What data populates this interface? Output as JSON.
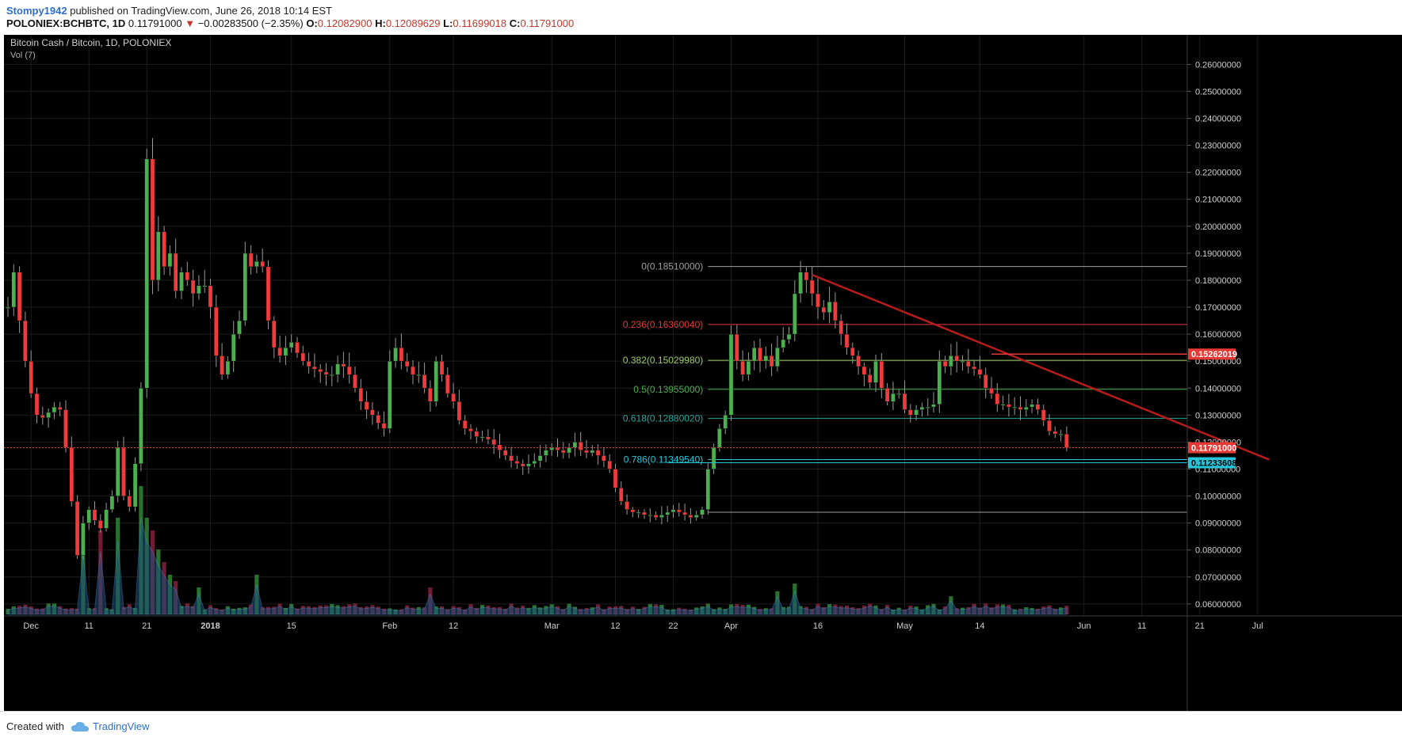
{
  "header": {
    "author": "Stompy1942",
    "published_text": "published on TradingView.com, June 26, 2018 10:14 EST",
    "symbol": "POLONIEX:BCHBTC, 1D",
    "last": "0.11791000",
    "change_arrow": "▼",
    "change": "−0.00283500 (−2.35%)",
    "o_label": "O:",
    "o_value": "0.12082900",
    "h_label": "H:",
    "h_value": "0.12089629",
    "l_label": "L:",
    "l_value": "0.11699018",
    "c_label": "C:",
    "c_value": "0.11791000"
  },
  "chart_header": {
    "title": "Bitcoin Cash / Bitcoin, 1D, POLONIEX",
    "volume_label": "Vol (7)"
  },
  "footer": {
    "created_with": "Created with",
    "brand": "TradingView"
  },
  "colors": {
    "background": "#000000",
    "up": "#4caf50",
    "down": "#ef3b3b",
    "grid": "#1c1c1c",
    "trendline": "#b71c1c",
    "price_line": "#e53935",
    "support": "#26c6da"
  },
  "chart_data": {
    "type": "candlestick",
    "title": "Bitcoin Cash / Bitcoin, 1D, POLONIEX",
    "ylim": [
      0.0582,
      0.2645
    ],
    "y_ticks": [
      "0.26000000",
      "0.25000000",
      "0.24000000",
      "0.23000000",
      "0.22000000",
      "0.21000000",
      "0.20000000",
      "0.19000000",
      "0.18000000",
      "0.17000000",
      "0.16000000",
      "0.15000000",
      "0.14000000",
      "0.13000000",
      "0.12000000",
      "0.11000000",
      "0.10000000",
      "0.09000000",
      "0.08000000",
      "0.07000000",
      "0.06000000"
    ],
    "x_ticks": [
      {
        "label": "Dec",
        "day": 1
      },
      {
        "label": "11",
        "day": 11
      },
      {
        "label": "21",
        "day": 21
      },
      {
        "label": "2018",
        "day": 32
      },
      {
        "label": "15",
        "day": 46
      },
      {
        "label": "Feb",
        "day": 63
      },
      {
        "label": "12",
        "day": 74
      },
      {
        "label": "Mar",
        "day": 91
      },
      {
        "label": "12",
        "day": 102
      },
      {
        "label": "22",
        "day": 112
      },
      {
        "label": "Apr",
        "day": 122
      },
      {
        "label": "16",
        "day": 137
      },
      {
        "label": "May",
        "day": 152
      },
      {
        "label": "14",
        "day": 165
      },
      {
        "label": "Jun",
        "day": 183
      },
      {
        "label": "11",
        "day": 193
      },
      {
        "label": "21",
        "day": 203
      },
      {
        "label": "Jul",
        "day": 213
      }
    ],
    "price_anchors": [
      [
        -3,
        0.17
      ],
      [
        -2,
        0.183
      ],
      [
        -1,
        0.165
      ],
      [
        0,
        0.15
      ],
      [
        1,
        0.138
      ],
      [
        2,
        0.13
      ],
      [
        3,
        0.129
      ],
      [
        4,
        0.131
      ],
      [
        5,
        0.133
      ],
      [
        6,
        0.132
      ],
      [
        7,
        0.118
      ],
      [
        8,
        0.098
      ],
      [
        9,
        0.078
      ],
      [
        10,
        0.09
      ],
      [
        11,
        0.095
      ],
      [
        12,
        0.091
      ],
      [
        13,
        0.088
      ],
      [
        14,
        0.095
      ],
      [
        15,
        0.1
      ],
      [
        16,
        0.118
      ],
      [
        17,
        0.1
      ],
      [
        18,
        0.096
      ],
      [
        19,
        0.112
      ],
      [
        20,
        0.14
      ],
      [
        21,
        0.225
      ],
      [
        22,
        0.18
      ],
      [
        23,
        0.198
      ],
      [
        24,
        0.185
      ],
      [
        25,
        0.19
      ],
      [
        26,
        0.176
      ],
      [
        27,
        0.183
      ],
      [
        28,
        0.18
      ],
      [
        29,
        0.175
      ],
      [
        30,
        0.178
      ],
      [
        31,
        0.178
      ],
      [
        32,
        0.17
      ],
      [
        33,
        0.152
      ],
      [
        34,
        0.145
      ],
      [
        35,
        0.15
      ],
      [
        36,
        0.16
      ],
      [
        37,
        0.165
      ],
      [
        38,
        0.19
      ],
      [
        39,
        0.185
      ],
      [
        40,
        0.187
      ],
      [
        41,
        0.185
      ],
      [
        42,
        0.165
      ],
      [
        43,
        0.155
      ],
      [
        44,
        0.152
      ],
      [
        45,
        0.155
      ],
      [
        46,
        0.157
      ],
      [
        47,
        0.153
      ],
      [
        48,
        0.15
      ],
      [
        49,
        0.148
      ],
      [
        50,
        0.147
      ],
      [
        51,
        0.146
      ],
      [
        52,
        0.145
      ],
      [
        53,
        0.145
      ],
      [
        54,
        0.149
      ],
      [
        55,
        0.148
      ],
      [
        56,
        0.145
      ],
      [
        57,
        0.14
      ],
      [
        58,
        0.135
      ],
      [
        59,
        0.132
      ],
      [
        60,
        0.13
      ],
      [
        61,
        0.127
      ],
      [
        62,
        0.125
      ],
      [
        63,
        0.15
      ],
      [
        64,
        0.155
      ],
      [
        65,
        0.15
      ],
      [
        66,
        0.148
      ],
      [
        67,
        0.145
      ],
      [
        68,
        0.145
      ],
      [
        69,
        0.14
      ],
      [
        70,
        0.135
      ],
      [
        71,
        0.15
      ],
      [
        72,
        0.145
      ],
      [
        73,
        0.138
      ],
      [
        74,
        0.135
      ],
      [
        75,
        0.128
      ],
      [
        76,
        0.125
      ],
      [
        77,
        0.124
      ],
      [
        78,
        0.122
      ],
      [
        79,
        0.122
      ],
      [
        80,
        0.121
      ],
      [
        81,
        0.119
      ],
      [
        82,
        0.117
      ],
      [
        83,
        0.115
      ],
      [
        84,
        0.113
      ],
      [
        85,
        0.112
      ],
      [
        86,
        0.111
      ],
      [
        87,
        0.112
      ],
      [
        88,
        0.113
      ],
      [
        89,
        0.115
      ],
      [
        90,
        0.117
      ],
      [
        91,
        0.118
      ],
      [
        92,
        0.117
      ],
      [
        93,
        0.116
      ],
      [
        94,
        0.118
      ],
      [
        95,
        0.12
      ],
      [
        96,
        0.117
      ],
      [
        97,
        0.116
      ],
      [
        98,
        0.117
      ],
      [
        99,
        0.115
      ],
      [
        100,
        0.113
      ],
      [
        101,
        0.11
      ],
      [
        102,
        0.103
      ],
      [
        103,
        0.098
      ],
      [
        104,
        0.095
      ],
      [
        105,
        0.094
      ],
      [
        106,
        0.094
      ],
      [
        107,
        0.093
      ],
      [
        108,
        0.093
      ],
      [
        109,
        0.092
      ],
      [
        110,
        0.093
      ],
      [
        111,
        0.094
      ],
      [
        112,
        0.095
      ],
      [
        113,
        0.094
      ],
      [
        114,
        0.093
      ],
      [
        115,
        0.092
      ],
      [
        116,
        0.093
      ],
      [
        117,
        0.095
      ],
      [
        118,
        0.11
      ],
      [
        119,
        0.118
      ],
      [
        120,
        0.125
      ],
      [
        121,
        0.13
      ],
      [
        122,
        0.16
      ],
      [
        123,
        0.15
      ],
      [
        124,
        0.145
      ],
      [
        125,
        0.15
      ],
      [
        126,
        0.155
      ],
      [
        127,
        0.15
      ],
      [
        128,
        0.152
      ],
      [
        129,
        0.148
      ],
      [
        130,
        0.155
      ],
      [
        131,
        0.158
      ],
      [
        132,
        0.16
      ],
      [
        133,
        0.175
      ],
      [
        134,
        0.183
      ],
      [
        135,
        0.18
      ],
      [
        136,
        0.175
      ],
      [
        137,
        0.17
      ],
      [
        138,
        0.168
      ],
      [
        139,
        0.172
      ],
      [
        140,
        0.165
      ],
      [
        141,
        0.16
      ],
      [
        142,
        0.155
      ],
      [
        143,
        0.152
      ],
      [
        144,
        0.148
      ],
      [
        145,
        0.145
      ],
      [
        146,
        0.142
      ],
      [
        147,
        0.15
      ],
      [
        148,
        0.14
      ],
      [
        149,
        0.135
      ],
      [
        150,
        0.138
      ],
      [
        151,
        0.138
      ],
      [
        152,
        0.132
      ],
      [
        153,
        0.13
      ],
      [
        154,
        0.132
      ],
      [
        155,
        0.133
      ],
      [
        156,
        0.133
      ],
      [
        157,
        0.134
      ],
      [
        158,
        0.15
      ],
      [
        159,
        0.148
      ],
      [
        160,
        0.152
      ],
      [
        161,
        0.15
      ],
      [
        162,
        0.15
      ],
      [
        163,
        0.148
      ],
      [
        164,
        0.147
      ],
      [
        165,
        0.145
      ],
      [
        166,
        0.14
      ],
      [
        167,
        0.138
      ],
      [
        168,
        0.134
      ],
      [
        169,
        0.134
      ],
      [
        170,
        0.133
      ],
      [
        171,
        0.133
      ],
      [
        172,
        0.132
      ],
      [
        173,
        0.133
      ],
      [
        174,
        0.134
      ],
      [
        175,
        0.132
      ],
      [
        176,
        0.128
      ],
      [
        177,
        0.124
      ],
      [
        178,
        0.123
      ],
      [
        179,
        0.123
      ],
      [
        180,
        0.1179
      ]
    ],
    "price_days": [
      -3,
      180
    ],
    "volume_peaks": [
      [
        10,
        0.55
      ],
      [
        13,
        0.6
      ],
      [
        16,
        0.7
      ],
      [
        20,
        0.95
      ],
      [
        21,
        0.7
      ],
      [
        22,
        0.6
      ],
      [
        23,
        0.45
      ],
      [
        24,
        0.35
      ],
      [
        25,
        0.25
      ],
      [
        26,
        0.2
      ],
      [
        30,
        0.15
      ],
      [
        40,
        0.25
      ],
      [
        70,
        0.15
      ],
      [
        130,
        0.12
      ],
      [
        133,
        0.18
      ],
      [
        160,
        0.08
      ]
    ],
    "fib_levels": [
      {
        "label": "0(0.18510000)",
        "value": 0.1851,
        "color": "#9e9e9e"
      },
      {
        "label": "0.236(0.16360040)",
        "value": 0.1636,
        "color": "#e53935"
      },
      {
        "label": "0.382(0.15029980)",
        "value": 0.1503,
        "color": "#9ccc65"
      },
      {
        "label": "0.5(0.13955000)",
        "value": 0.13955,
        "color": "#4caf50"
      },
      {
        "label": "0.618(0.12880020)",
        "value": 0.1288,
        "color": "#26a69a"
      },
      {
        "label": "0.786(0.11349540)",
        "value": 0.1135,
        "color": "#26c6da"
      },
      {
        "label": "",
        "value": 0.094,
        "color": "#9e9e9e"
      }
    ],
    "fib_start_day": 118,
    "trendline": {
      "from": [
        136,
        0.182
      ],
      "to": [
        215,
        0.1135
      ]
    },
    "resistance_line": {
      "from_day": 167,
      "value": 0.15262019,
      "label": "0.15262019"
    },
    "last_price_label": "0.11791000",
    "support_label": "0.11233608",
    "support_value": 0.11233608,
    "support_from_day": 111,
    "grid": true
  }
}
